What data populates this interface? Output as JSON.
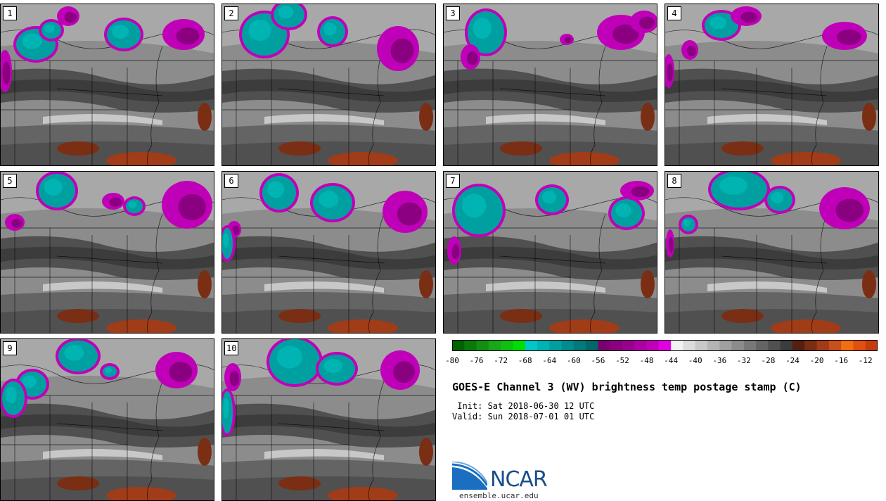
{
  "title": "GOES-E Channel 3 (WV) brightness temp postage stamp (C)",
  "init_label": " Init: Sat 2018-06-30 12 UTC",
  "valid_label": "Valid: Sun 2018-07-01 01 UTC",
  "logo": {
    "word": "NCAR",
    "url": "ensemble.ucar.edu"
  },
  "panels": [
    {
      "number": "1"
    },
    {
      "number": "2"
    },
    {
      "number": "3"
    },
    {
      "number": "4"
    },
    {
      "number": "5"
    },
    {
      "number": "6"
    },
    {
      "number": "7"
    },
    {
      "number": "8"
    },
    {
      "number": "9"
    },
    {
      "number": "10"
    }
  ],
  "colorbar": {
    "min": -80,
    "max": -10,
    "step": 2,
    "tick_labels": [
      "-80",
      "-76",
      "-72",
      "-68",
      "-64",
      "-60",
      "-56",
      "-52",
      "-48",
      "-44",
      "-40",
      "-36",
      "-32",
      "-28",
      "-24",
      "-20",
      "-16",
      "-12"
    ],
    "colors": [
      "#006400",
      "#0a7a0a",
      "#109010",
      "#18a818",
      "#10c010",
      "#00dd00",
      "#00c8c8",
      "#00b4b4",
      "#00a0a0",
      "#008c8c",
      "#007a7a",
      "#006868",
      "#7a0070",
      "#8a0080",
      "#9a0090",
      "#ac00a4",
      "#c000b8",
      "#e000e0",
      "#f2f2f2",
      "#dcdcdc",
      "#c8c8c8",
      "#b4b4b4",
      "#a0a0a0",
      "#8c8c8c",
      "#787878",
      "#646464",
      "#505050",
      "#3c3c3c",
      "#552010",
      "#7a2e14",
      "#a03c18",
      "#c8501c",
      "#f07010",
      "#e05010",
      "#c83c0c"
    ]
  }
}
